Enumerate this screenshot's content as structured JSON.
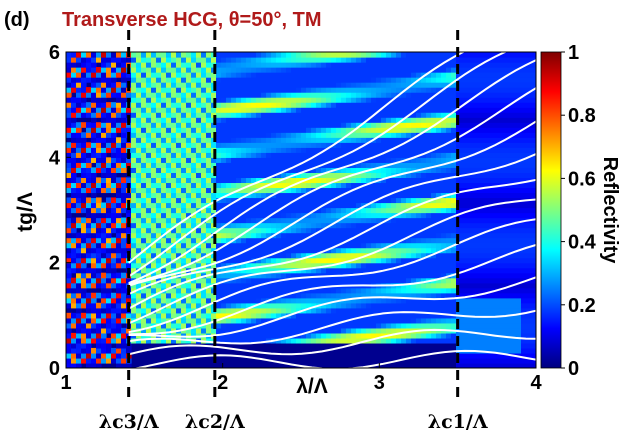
{
  "panel_letter": "(d)",
  "colormap": [
    "#00007f",
    "#0000ff",
    "#007fff",
    "#00ffff",
    "#7fff7f",
    "#ffff00",
    "#ff7f00",
    "#ff0000",
    "#7f0000"
  ],
  "chart_data": {
    "type": "heatmap",
    "title": "Transverse HCG, θ=50°, TM",
    "xlabel": "λ/Λ",
    "ylabel": "tg/Λ",
    "xlim": [
      1,
      4
    ],
    "ylim": [
      0,
      6
    ],
    "xticks": [
      "1",
      "2",
      "3",
      "4"
    ],
    "yticks": [
      "0",
      "2",
      "4",
      "6"
    ],
    "colorbar": {
      "label": "Reflectivity",
      "range": [
        0,
        1
      ],
      "ticks": [
        "0",
        "0.2",
        "0.4",
        "0.6",
        "0.8",
        "1"
      ]
    },
    "cutoff_lines": [
      {
        "label": "λc3/Λ",
        "x": 1.4
      },
      {
        "label": "λc2/Λ",
        "x": 1.95
      },
      {
        "label": "λc1/Λ",
        "x": 3.5
      }
    ],
    "grid": false
  }
}
